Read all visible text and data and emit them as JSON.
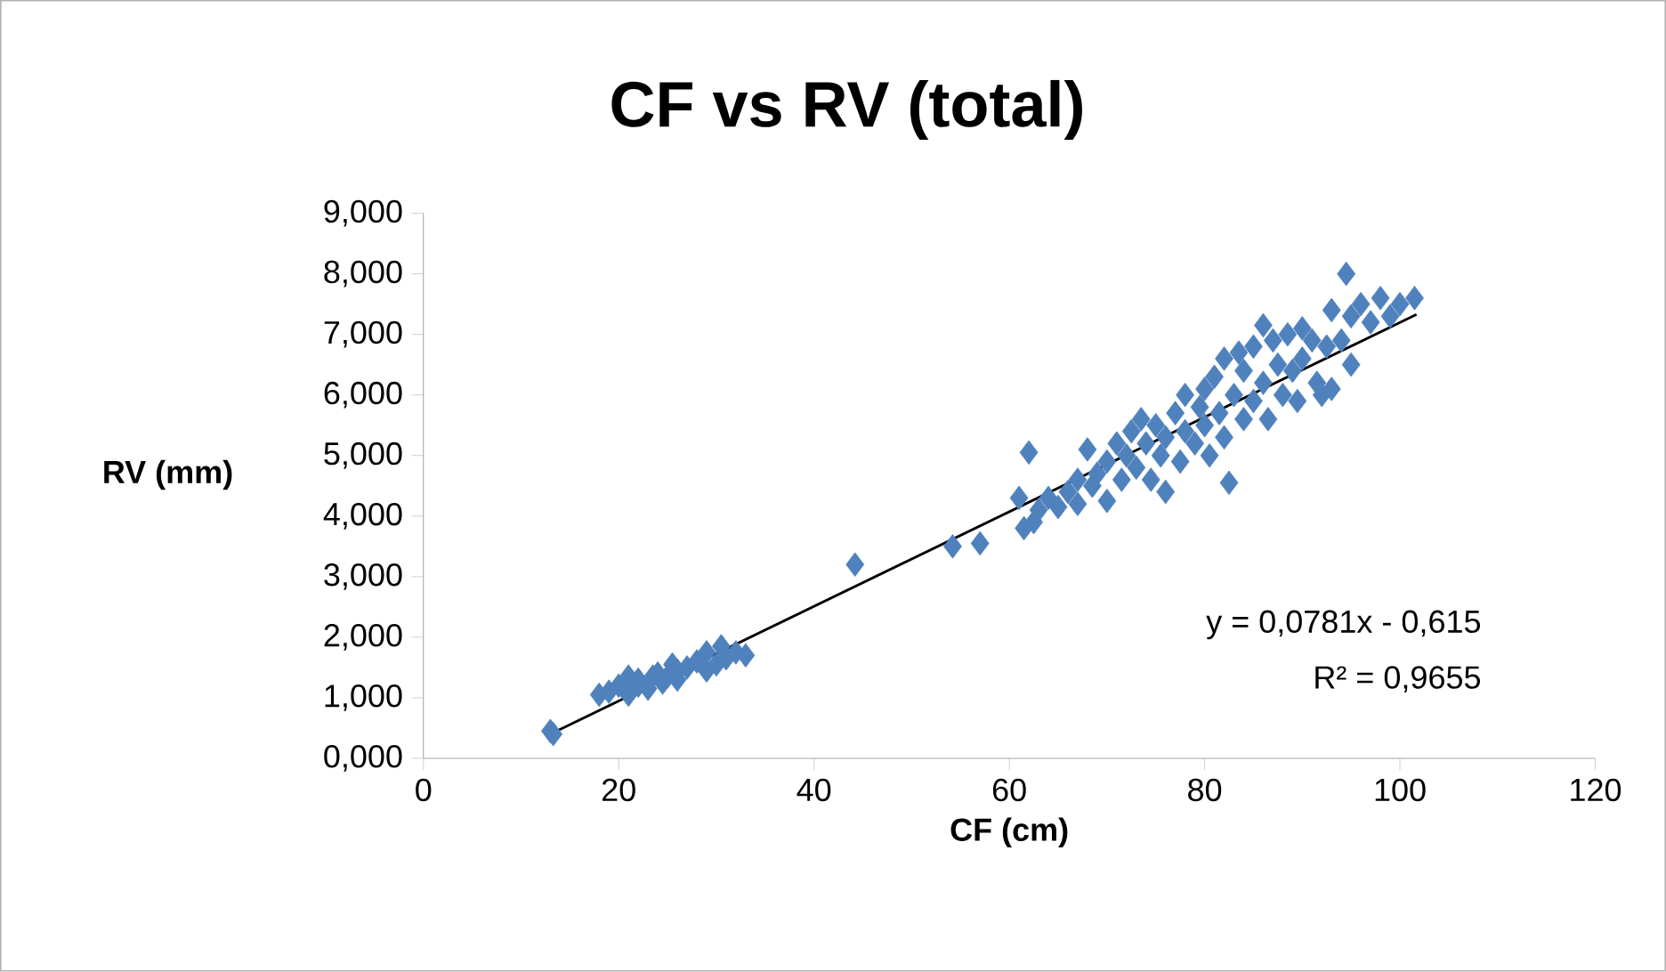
{
  "chart_data": {
    "type": "scatter",
    "title": "CF vs RV (total)",
    "xlabel": "CF (cm)",
    "ylabel": "RV (mm)",
    "xlim": [
      0,
      120
    ],
    "xticks": [
      0,
      20,
      40,
      60,
      80,
      100,
      120
    ],
    "ylim": [
      0,
      9
    ],
    "yticks": [
      {
        "value": 0,
        "label": "0,000"
      },
      {
        "value": 1,
        "label": "1,000"
      },
      {
        "value": 2,
        "label": "2,000"
      },
      {
        "value": 3,
        "label": "3,000"
      },
      {
        "value": 4,
        "label": "4,000"
      },
      {
        "value": 5,
        "label": "5,000"
      },
      {
        "value": 6,
        "label": "6,000"
      },
      {
        "value": 7,
        "label": "7,000"
      },
      {
        "value": 8,
        "label": "8,000"
      },
      {
        "value": 9,
        "label": "9,000"
      }
    ],
    "grid": false,
    "marker": "diamond",
    "annotations": [
      "y = 0,0781x - 0,615",
      "R² = 0,9655"
    ],
    "series": [
      {
        "color": "#4f81bd",
        "x": [
          13,
          13.3,
          18,
          19,
          20,
          21,
          21,
          22,
          22,
          23,
          23.5,
          24,
          24.5,
          25,
          25.5,
          26,
          26,
          27,
          28,
          29,
          29,
          30,
          30.5,
          31,
          32,
          33,
          44.2,
          54.2,
          57,
          61,
          61.5,
          62,
          62.5,
          63,
          64,
          65,
          66,
          67,
          67,
          68,
          68.5,
          69,
          70,
          70,
          71,
          71.5,
          72,
          72.5,
          73,
          73.5,
          74,
          74.5,
          75,
          75.5,
          76,
          76,
          77,
          77.5,
          78,
          78,
          79,
          79.5,
          80,
          80,
          80.5,
          81,
          81.5,
          82,
          82,
          82.5,
          83,
          83.5,
          84,
          84,
          85,
          85,
          86,
          86,
          86.5,
          87,
          87.5,
          88,
          88.5,
          89,
          89.5,
          90,
          90,
          91,
          91.5,
          92,
          92.5,
          93,
          93,
          94,
          94.5,
          95,
          95,
          96,
          97,
          98,
          99,
          100,
          101.5
        ],
        "values": [
          0.45,
          0.4,
          1.05,
          1.1,
          1.2,
          1.35,
          1.05,
          1.2,
          1.3,
          1.15,
          1.35,
          1.4,
          1.25,
          1.35,
          1.55,
          1.45,
          1.3,
          1.5,
          1.6,
          1.45,
          1.75,
          1.55,
          1.85,
          1.65,
          1.75,
          1.7,
          3.2,
          3.5,
          3.55,
          4.3,
          3.8,
          5.05,
          3.9,
          4.1,
          4.3,
          4.15,
          4.4,
          4.6,
          4.2,
          5.1,
          4.5,
          4.7,
          4.25,
          4.9,
          5.2,
          4.6,
          5.0,
          5.4,
          4.8,
          5.6,
          5.2,
          4.6,
          5.5,
          5.0,
          4.4,
          5.3,
          5.7,
          4.9,
          6.0,
          5.4,
          5.2,
          5.8,
          6.1,
          5.5,
          5.0,
          6.3,
          5.7,
          6.6,
          5.3,
          4.55,
          6.0,
          6.7,
          5.6,
          6.4,
          6.8,
          5.9,
          7.15,
          6.2,
          5.6,
          6.9,
          6.5,
          6.0,
          7.0,
          6.4,
          5.9,
          7.1,
          6.6,
          6.9,
          6.2,
          6.0,
          6.8,
          7.4,
          6.1,
          6.9,
          8.0,
          7.3,
          6.5,
          7.5,
          7.2,
          7.6,
          7.3,
          7.5,
          7.6
        ]
      },
      {
        "type": "line",
        "color": "#000000",
        "marker": "none",
        "x": [
          13,
          101.7
        ],
        "values": [
          0.4,
          7.33
        ]
      }
    ]
  }
}
